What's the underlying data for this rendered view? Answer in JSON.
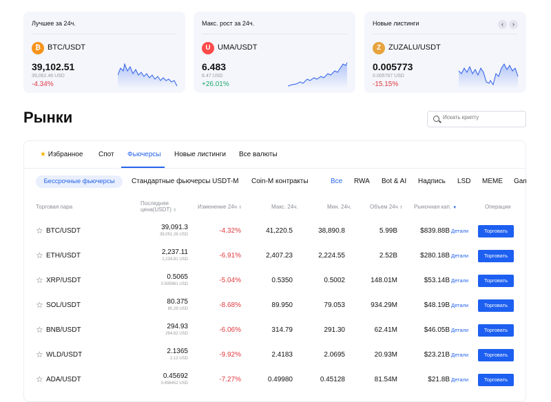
{
  "cards": [
    {
      "title": "Лучшее за 24ч.",
      "pair": "BTC/USDT",
      "price": "39,102.51",
      "sub": "39,062.46 USD",
      "change": "-4.34%",
      "coin_color": "#f7931a",
      "coin_glyph": "₿"
    },
    {
      "title": "Макс. рост за 24ч.",
      "pair": "UMA/USDT",
      "price": "6.483",
      "sub": "6.47 USD",
      "change": "+26.01%",
      "coin_color": "#ff4a4a",
      "coin_glyph": "U"
    },
    {
      "title": "Новые листинги",
      "pair": "ZUZALU/USDT",
      "price": "0.005773",
      "sub": "0.005767 USD",
      "change": "-15.15%",
      "coin_color": "#e7a33c",
      "coin_glyph": "Z"
    }
  ],
  "nav": {
    "prev": "‹",
    "next": "›"
  },
  "page_title": "Рынки",
  "search": {
    "placeholder": "Искать крипту"
  },
  "tabs": [
    "Избранное",
    "Спот",
    "Фьючерсы",
    "Новые листинги",
    "Все валюты"
  ],
  "active_tab": "Фьючерсы",
  "sub_tabs": [
    "Бессрочные фьючерсы",
    "Стандартные фьючерсы USDT-M",
    "Coin-M контракты"
  ],
  "chips": [
    "Все",
    "RWA",
    "Bot & AI",
    "Надпись",
    "LSD",
    "MEME",
    "Gam"
  ],
  "headers": {
    "pair": "Торговая пара",
    "last_1": "Последняя",
    "last_2": "цена(USDT)",
    "change": "Изменение 24ч",
    "high": "Макс. 24ч.",
    "low": "Мин. 24ч.",
    "volume": "Объем 24ч",
    "cap": "Рыночная кап.",
    "ops": "Операции"
  },
  "rows": [
    {
      "pair": "BTC/USDT",
      "last": "39,091.3",
      "last_usd": "39,051.26 USD",
      "change": "-4.32%",
      "high": "41,220.5",
      "low": "38,890.8",
      "volume": "5.99B",
      "cap": "$839.88B"
    },
    {
      "pair": "ETH/USDT",
      "last": "2,237.11",
      "last_usd": "2,234.81 USD",
      "change": "-6.91%",
      "high": "2,407.23",
      "low": "2,224.55",
      "volume": "2.52B",
      "cap": "$280.18B"
    },
    {
      "pair": "XRP/USDT",
      "last": "0.5065",
      "last_usd": "0.505981 USD",
      "change": "-5.04%",
      "high": "0.5350",
      "low": "0.5002",
      "volume": "148.01M",
      "cap": "$53.14B"
    },
    {
      "pair": "SOL/USDT",
      "last": "80.375",
      "last_usd": "80.29 USD",
      "change": "-8.68%",
      "high": "89.950",
      "low": "79.053",
      "volume": "934.29M",
      "cap": "$48.19B"
    },
    {
      "pair": "BNB/USDT",
      "last": "294.93",
      "last_usd": "294.62 USD",
      "change": "-6.06%",
      "high": "314.79",
      "low": "291.30",
      "volume": "62.41M",
      "cap": "$46.05B"
    },
    {
      "pair": "WLD/USDT",
      "last": "2.1365",
      "last_usd": "2.13 USD",
      "change": "-9.92%",
      "high": "2.4183",
      "low": "2.0695",
      "volume": "20.93M",
      "cap": "$23.21B"
    },
    {
      "pair": "ADA/USDT",
      "last": "0.45692",
      "last_usd": "0.456452 USD",
      "change": "-7.27%",
      "high": "0.49980",
      "low": "0.45128",
      "volume": "81.54M",
      "cap": "$21.8B"
    }
  ],
  "details_label": "Детали",
  "trade_label": "Торговать",
  "colors": {
    "accent": "#2463eb",
    "negative": "#e0393e",
    "positive": "#20a86a",
    "button": "#1d5ff0"
  }
}
